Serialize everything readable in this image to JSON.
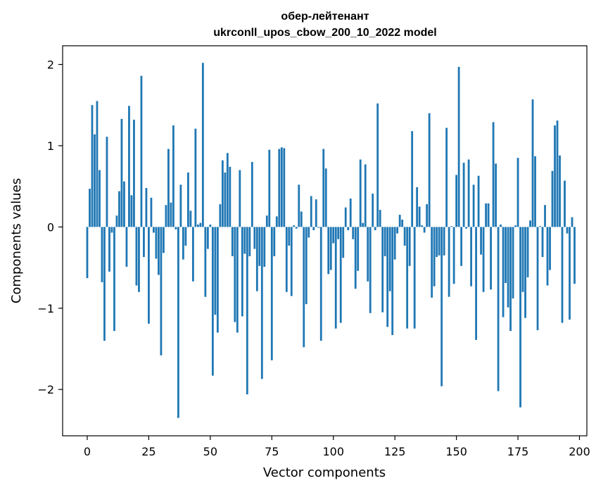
{
  "chart_data": {
    "type": "bar",
    "title_lines": [
      "обер-лейтенант",
      "ukrconll_upos_cbow_200_10_2022 model"
    ],
    "xlabel": "Vector components",
    "ylabel": "Components values",
    "xlim": [
      -10,
      203
    ],
    "ylim": [
      -2.57,
      2.23
    ],
    "x_ticks": [
      0,
      25,
      50,
      75,
      100,
      125,
      150,
      175,
      200
    ],
    "x_tick_labels": [
      "0",
      "25",
      "50",
      "75",
      "100",
      "125",
      "150",
      "175",
      "200"
    ],
    "y_ticks": [
      -2,
      -1,
      0,
      1,
      2
    ],
    "y_tick_labels": [
      "−2",
      "−1",
      "0",
      "1",
      "2"
    ],
    "grid": false,
    "bar_color": "#1f77b4",
    "values": [
      -0.63,
      0.47,
      1.5,
      1.14,
      1.55,
      0.7,
      -0.68,
      -1.4,
      1.11,
      -0.55,
      -0.07,
      -1.28,
      0.14,
      0.44,
      1.33,
      0.56,
      -0.49,
      1.49,
      0.39,
      1.32,
      -0.72,
      -0.8,
      1.86,
      -0.37,
      0.48,
      -1.19,
      0.36,
      -0.07,
      -0.39,
      -0.59,
      -1.58,
      -0.32,
      0.27,
      0.96,
      0.3,
      1.25,
      -0.03,
      -2.35,
      0.52,
      -0.4,
      -0.23,
      0.67,
      0.2,
      -0.67,
      1.21,
      0.03,
      0.05,
      2.02,
      -0.86,
      -0.27,
      0.03,
      -1.83,
      -1.08,
      -1.3,
      0.28,
      0.82,
      0.67,
      0.91,
      0.74,
      -0.36,
      -1.17,
      -1.3,
      0.7,
      -1.1,
      -0.33,
      -2.06,
      -0.36,
      0.8,
      -0.27,
      -0.79,
      -0.48,
      -1.87,
      -0.49,
      0.14,
      0.95,
      -1.64,
      -0.36,
      0.13,
      0.96,
      0.98,
      0.97,
      -0.8,
      -0.23,
      -0.85,
      0.02,
      -0.02,
      0.52,
      0.19,
      -1.48,
      -0.95,
      -0.13,
      0.38,
      -0.04,
      0.34,
      -0.01,
      -1.4,
      0.96,
      0.72,
      -0.58,
      -0.53,
      -0.2,
      -1.25,
      -0.15,
      -1.18,
      -0.38,
      0.24,
      -0.04,
      0.35,
      -0.15,
      -0.76,
      -0.54,
      0.83,
      0.05,
      0.77,
      -0.67,
      -1.06,
      0.41,
      -0.04,
      1.52,
      0.21,
      -1.05,
      -0.36,
      -1.23,
      -0.79,
      -1.33,
      -0.4,
      -0.08,
      0.15,
      0.09,
      -0.23,
      -1.25,
      -0.48,
      1.18,
      -1.25,
      0.49,
      0.25,
      0.02,
      -0.07,
      0.28,
      1.4,
      -0.87,
      -0.73,
      -0.37,
      -0.35,
      -1.96,
      -0.35,
      1.22,
      -0.86,
      0.01,
      -0.7,
      0.64,
      1.97,
      -0.48,
      0.79,
      -0.02,
      0.83,
      -0.73,
      0.52,
      -1.39,
      0.63,
      -0.34,
      -0.8,
      0.29,
      0.29,
      -0.77,
      1.29,
      0.78,
      -2.02,
      0.03,
      -1.11,
      -0.69,
      -0.99,
      -1.28,
      -0.88,
      0.02,
      0.85,
      -2.22,
      -0.8,
      -1.12,
      -0.62,
      0.08,
      1.57,
      0.87,
      -1.27,
      0.01,
      -0.37,
      0.27,
      -0.72,
      -0.53,
      0.69,
      1.25,
      1.31,
      0.88,
      -1.18,
      0.57,
      -0.08,
      -1.14,
      0.12,
      -0.7
    ]
  }
}
